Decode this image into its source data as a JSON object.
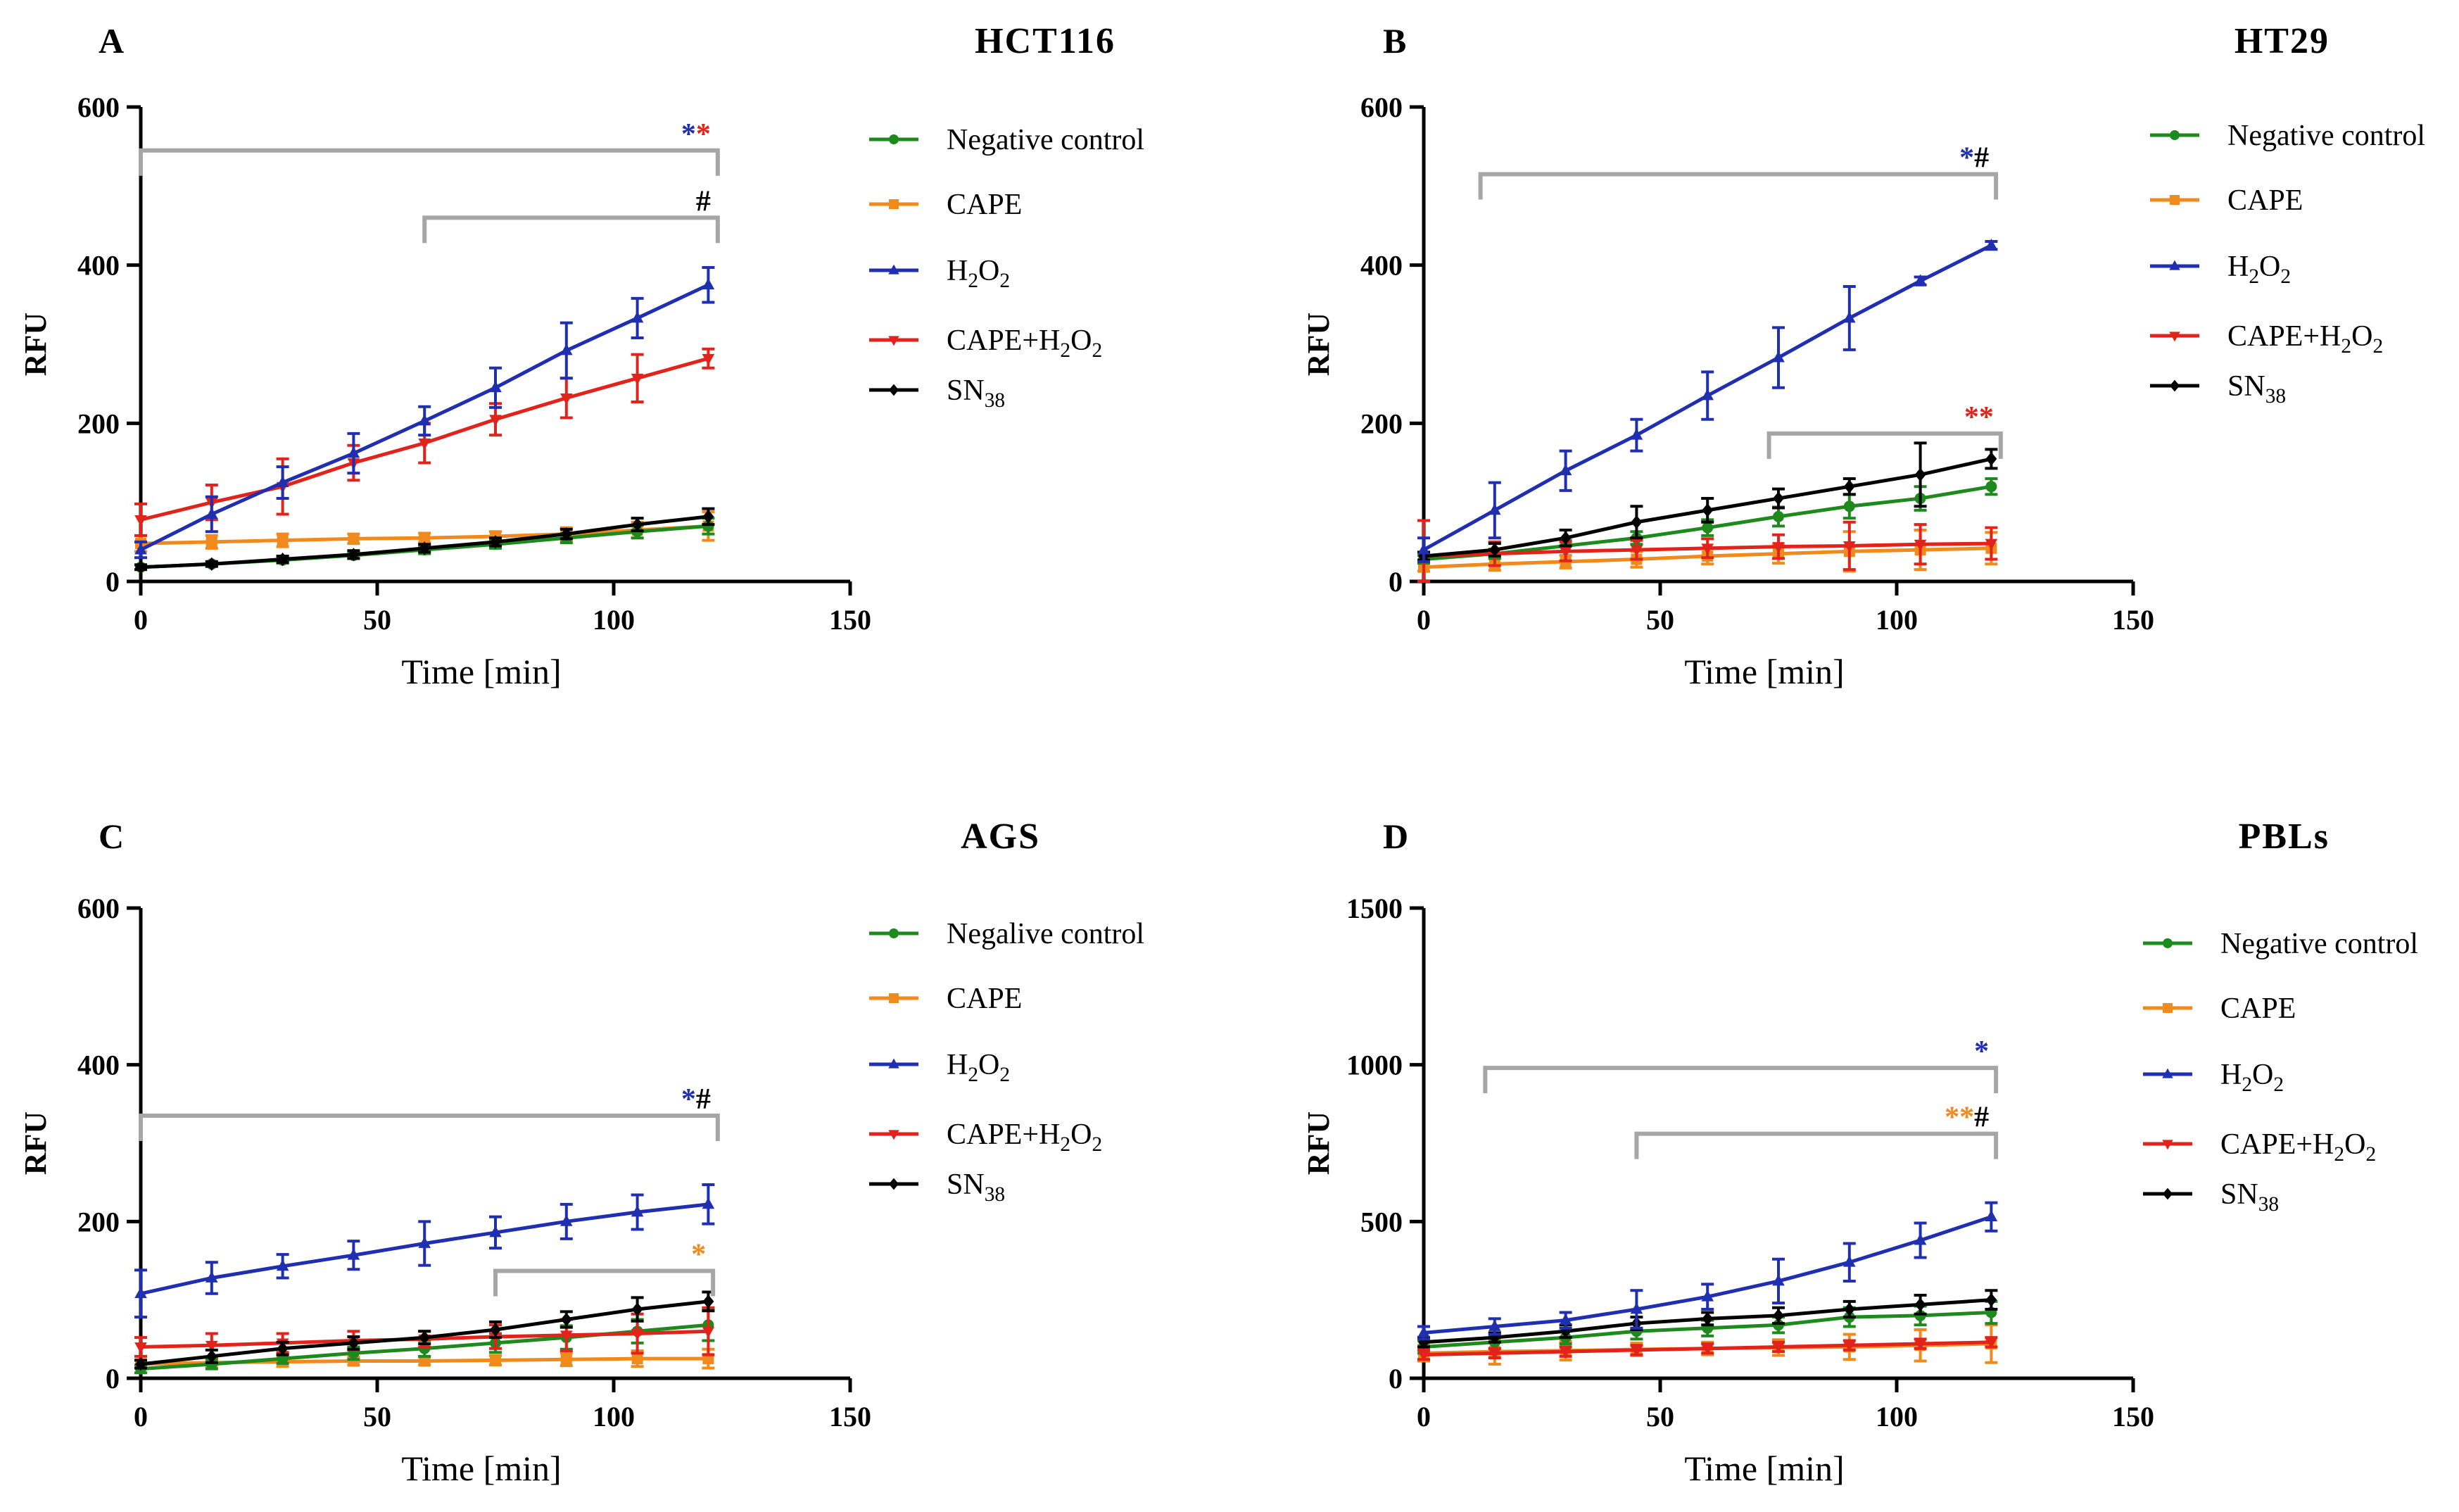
{
  "colors": {
    "negative_control": "#1e8a1e",
    "cape": "#f08a1c",
    "h2o2": "#1f2fb0",
    "cape_h2o2": "#e2231c",
    "sn38": "#000000",
    "bracket": "#a6a6a6",
    "star_blue": "#1f2fb0",
    "star_red": "#e2231c",
    "star_orange": "#f08a1c",
    "hash": "#000000"
  },
  "chart_data": [
    {
      "type": "line",
      "letter": "A",
      "title": "HCT116",
      "xlabel": "Time [min]",
      "ylabel": "RFU",
      "xlim": [
        0,
        150
      ],
      "ylim": [
        0,
        600
      ],
      "xticks": [
        0,
        50,
        100,
        150
      ],
      "yticks": [
        0,
        200,
        400,
        600
      ],
      "x": [
        0,
        15,
        30,
        45,
        60,
        75,
        90,
        105,
        120
      ],
      "series": [
        {
          "key": "negative_control",
          "name": "Negative control",
          "marker": "circle",
          "values": [
            18,
            22,
            27,
            33,
            40,
            47,
            55,
            63,
            70
          ],
          "err": [
            3,
            3,
            4,
            4,
            5,
            5,
            6,
            8,
            10
          ]
        },
        {
          "key": "cape",
          "name": "CAPE",
          "marker": "square",
          "values": [
            48,
            50,
            52,
            54,
            55,
            57,
            60,
            65,
            70
          ],
          "err": [
            10,
            8,
            8,
            6,
            6,
            6,
            8,
            10,
            18
          ]
        },
        {
          "key": "h2o2",
          "name": "H2O2",
          "marker": "triangle",
          "values": [
            40,
            85,
            125,
            162,
            203,
            245,
            292,
            333,
            375
          ],
          "err": [
            10,
            22,
            20,
            25,
            18,
            25,
            35,
            25,
            22
          ]
        },
        {
          "key": "cape_h2o2",
          "name": "CAPE+H2O2",
          "marker": "triangle-down",
          "values": [
            78,
            100,
            120,
            150,
            175,
            205,
            232,
            257,
            282
          ],
          "err": [
            20,
            22,
            35,
            22,
            25,
            20,
            25,
            30,
            12
          ]
        },
        {
          "key": "sn38",
          "name": "SN38",
          "marker": "diamond",
          "values": [
            18,
            22,
            28,
            34,
            42,
            50,
            60,
            72,
            82
          ],
          "err": [
            3,
            3,
            4,
            5,
            5,
            5,
            6,
            8,
            10
          ]
        }
      ],
      "annotations": [
        {
          "from": 0,
          "to": 122,
          "y": 545,
          "marks": [
            {
              "text": "*",
              "color": "star_blue"
            },
            {
              "text": "*",
              "color": "star_red"
            }
          ]
        },
        {
          "from": 60,
          "to": 122,
          "y": 460,
          "marks": [
            {
              "text": "#",
              "color": "hash"
            }
          ]
        }
      ]
    },
    {
      "type": "line",
      "letter": "B",
      "title": "HT29",
      "xlabel": "Time [min]",
      "ylabel": "RFU",
      "xlim": [
        0,
        150
      ],
      "ylim": [
        0,
        600
      ],
      "xticks": [
        0,
        50,
        100,
        150
      ],
      "yticks": [
        0,
        200,
        400,
        600
      ],
      "x": [
        0,
        15,
        30,
        45,
        60,
        75,
        90,
        105,
        120
      ],
      "series": [
        {
          "key": "negative_control",
          "name": "Negative control",
          "marker": "circle",
          "values": [
            28,
            35,
            45,
            55,
            68,
            82,
            95,
            105,
            120
          ],
          "err": [
            5,
            6,
            7,
            8,
            10,
            12,
            15,
            15,
            10
          ]
        },
        {
          "key": "cape",
          "name": "CAPE",
          "marker": "square",
          "values": [
            18,
            22,
            25,
            28,
            32,
            35,
            38,
            40,
            42
          ],
          "err": [
            5,
            8,
            8,
            10,
            10,
            12,
            25,
            25,
            20
          ]
        },
        {
          "key": "h2o2",
          "name": "H2O2",
          "marker": "triangle",
          "values": [
            40,
            90,
            140,
            185,
            235,
            283,
            333,
            380,
            425
          ],
          "err": [
            15,
            35,
            25,
            20,
            30,
            38,
            40,
            5,
            5
          ]
        },
        {
          "key": "cape_h2o2",
          "name": "CAPE+H2O2",
          "marker": "triangle-down",
          "values": [
            32,
            35,
            38,
            40,
            42,
            44,
            45,
            47,
            48
          ],
          "err": [
            45,
            15,
            12,
            12,
            12,
            15,
            30,
            25,
            20
          ]
        },
        {
          "key": "sn38",
          "name": "SN38",
          "marker": "diamond",
          "values": [
            32,
            40,
            55,
            75,
            90,
            105,
            120,
            135,
            155
          ],
          "err": [
            5,
            8,
            10,
            20,
            15,
            12,
            10,
            40,
            12
          ]
        }
      ],
      "annotations": [
        {
          "from": 12,
          "to": 121,
          "y": 515,
          "marks": [
            {
              "text": "*",
              "color": "star_blue"
            },
            {
              "text": "#",
              "color": "hash"
            }
          ]
        },
        {
          "from": 73,
          "to": 122,
          "y": 187,
          "marks": [
            {
              "text": "**",
              "color": "star_red"
            }
          ]
        }
      ]
    },
    {
      "type": "line",
      "letter": "C",
      "title": "AGS",
      "xlabel": "Time [min]",
      "ylabel": "RFU",
      "xlim": [
        0,
        150
      ],
      "ylim": [
        0,
        600
      ],
      "xticks": [
        0,
        50,
        100,
        150
      ],
      "yticks": [
        0,
        200,
        400,
        600
      ],
      "x": [
        0,
        15,
        30,
        45,
        60,
        75,
        90,
        105,
        120
      ],
      "series": [
        {
          "key": "negative_control",
          "name": "Negalive control",
          "marker": "circle",
          "values": [
            12,
            18,
            25,
            32,
            38,
            45,
            52,
            60,
            68
          ],
          "err": [
            5,
            6,
            6,
            8,
            10,
            12,
            15,
            15,
            20
          ]
        },
        {
          "key": "cape",
          "name": "CAPE",
          "marker": "square",
          "values": [
            18,
            20,
            21,
            22,
            22,
            23,
            24,
            25,
            25
          ],
          "err": [
            5,
            6,
            6,
            5,
            5,
            6,
            8,
            10,
            12
          ]
        },
        {
          "key": "h2o2",
          "name": "H2O2",
          "marker": "triangle",
          "values": [
            108,
            128,
            143,
            157,
            172,
            186,
            200,
            212,
            222
          ],
          "err": [
            30,
            20,
            15,
            18,
            28,
            20,
            22,
            22,
            25
          ]
        },
        {
          "key": "cape_h2o2",
          "name": "CAPE+H2O2",
          "marker": "triangle-down",
          "values": [
            40,
            42,
            45,
            48,
            50,
            53,
            55,
            57,
            60
          ],
          "err": [
            12,
            15,
            12,
            12,
            10,
            15,
            20,
            25,
            30
          ]
        },
        {
          "key": "sn38",
          "name": "SN38",
          "marker": "diamond",
          "values": [
            18,
            28,
            38,
            45,
            52,
            62,
            75,
            88,
            98
          ],
          "err": [
            5,
            8,
            8,
            8,
            8,
            10,
            10,
            15,
            12
          ]
        }
      ],
      "annotations": [
        {
          "from": 0,
          "to": 122,
          "y": 335,
          "marks": [
            {
              "text": "*",
              "color": "star_blue"
            },
            {
              "text": "#",
              "color": "hash"
            }
          ]
        },
        {
          "from": 75,
          "to": 121,
          "y": 137,
          "marks": [
            {
              "text": "*",
              "color": "star_orange"
            }
          ]
        }
      ]
    },
    {
      "type": "line",
      "letter": "D",
      "title": "PBLs",
      "xlabel": "Time [min]",
      "ylabel": "RFU",
      "xlim": [
        0,
        150
      ],
      "ylim": [
        0,
        1500
      ],
      "xticks": [
        0,
        50,
        100,
        150
      ],
      "yticks": [
        0,
        500,
        1000,
        1500
      ],
      "x": [
        0,
        15,
        30,
        45,
        60,
        75,
        90,
        105,
        120
      ],
      "series": [
        {
          "key": "negative_control",
          "name": "Negative control",
          "marker": "circle",
          "values": [
            100,
            115,
            130,
            150,
            160,
            170,
            195,
            200,
            210
          ],
          "err": [
            20,
            20,
            20,
            25,
            25,
            25,
            30,
            30,
            35
          ]
        },
        {
          "key": "cape",
          "name": "CAPE",
          "marker": "square",
          "values": [
            80,
            85,
            88,
            92,
            95,
            98,
            100,
            105,
            110
          ],
          "err": [
            25,
            40,
            30,
            20,
            20,
            25,
            40,
            50,
            60
          ]
        },
        {
          "key": "h2o2",
          "name": "H2O2",
          "marker": "triangle",
          "values": [
            145,
            165,
            185,
            220,
            260,
            310,
            370,
            440,
            515
          ],
          "err": [
            20,
            25,
            25,
            60,
            40,
            70,
            60,
            55,
            45
          ]
        },
        {
          "key": "cape_h2o2",
          "name": "CAPE+H2O2",
          "marker": "triangle-down",
          "values": [
            75,
            80,
            85,
            90,
            95,
            100,
            105,
            110,
            115
          ],
          "err": [
            15,
            15,
            15,
            15,
            15,
            15,
            15,
            15,
            15
          ]
        },
        {
          "key": "sn38",
          "name": "SN38",
          "marker": "diamond",
          "values": [
            115,
            130,
            150,
            175,
            190,
            200,
            220,
            235,
            250
          ],
          "err": [
            15,
            15,
            20,
            20,
            20,
            25,
            25,
            30,
            30
          ]
        }
      ],
      "annotations": [
        {
          "from": 13,
          "to": 121,
          "y": 990,
          "marks": [
            {
              "text": "*",
              "color": "star_blue"
            }
          ]
        },
        {
          "from": 45,
          "to": 121,
          "y": 780,
          "marks": [
            {
              "text": "**",
              "color": "star_orange"
            },
            {
              "text": "#",
              "color": "hash"
            }
          ]
        }
      ]
    }
  ]
}
